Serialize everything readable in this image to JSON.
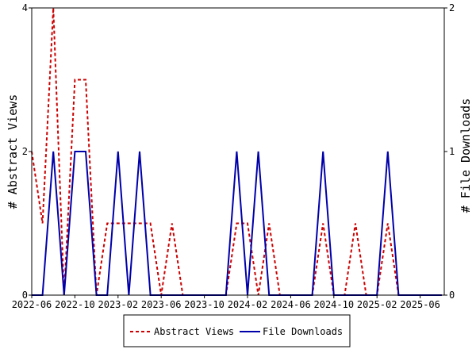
{
  "chart_data": {
    "type": "line",
    "title": "",
    "x_ticks": [
      "2022-06",
      "2022-10",
      "2023-02",
      "2023-06",
      "2023-10",
      "2024-02",
      "2024-06",
      "2024-10",
      "2025-02",
      "2025-06"
    ],
    "x": [
      "2022-06",
      "2022-07",
      "2022-08",
      "2022-09",
      "2022-10",
      "2022-11",
      "2022-12",
      "2023-01",
      "2023-02",
      "2023-03",
      "2023-04",
      "2023-05",
      "2023-06",
      "2023-07",
      "2023-08",
      "2023-09",
      "2023-10",
      "2023-11",
      "2023-12",
      "2024-01",
      "2024-02",
      "2024-03",
      "2024-04",
      "2024-05",
      "2024-06",
      "2024-07",
      "2024-08",
      "2024-09",
      "2024-10",
      "2024-11",
      "2024-12",
      "2025-01",
      "2025-02",
      "2025-03",
      "2025-04",
      "2025-05",
      "2025-06",
      "2025-07",
      "2025-08"
    ],
    "y_left": {
      "label": "# Abstract Views",
      "ticks": [
        0,
        2,
        4
      ],
      "range": [
        0,
        4
      ]
    },
    "y_right": {
      "label": "# File Downloads",
      "ticks": [
        0,
        1,
        2
      ],
      "range": [
        0,
        2
      ]
    },
    "series": [
      {
        "name": "Abstract Views",
        "axis": "left",
        "color": "#cc0000",
        "style": "dashed",
        "values": [
          2,
          1,
          4,
          0,
          3,
          3,
          0,
          1,
          1,
          1,
          1,
          1,
          0,
          1,
          0,
          0,
          0,
          0,
          0,
          1,
          1,
          0,
          1,
          0,
          0,
          0,
          0,
          1,
          0,
          0,
          1,
          0,
          0,
          1,
          0,
          0,
          0,
          0,
          0
        ]
      },
      {
        "name": "File Downloads",
        "axis": "right",
        "color": "#0000aa",
        "style": "solid",
        "values": [
          0,
          0,
          1,
          0,
          1,
          1,
          0,
          0,
          1,
          0,
          1,
          0,
          0,
          0,
          0,
          0,
          0,
          0,
          0,
          1,
          0,
          1,
          0,
          0,
          0,
          0,
          0,
          1,
          0,
          0,
          0,
          0,
          0,
          1,
          0,
          0,
          0,
          0,
          0
        ]
      }
    ],
    "legend_position": "bottom",
    "grid": false
  }
}
